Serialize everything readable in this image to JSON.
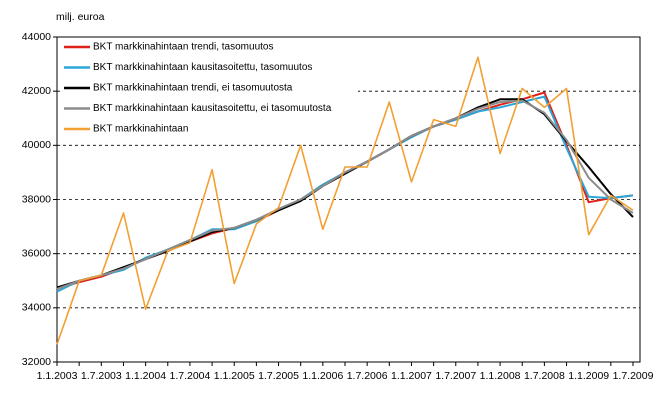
{
  "chart_data": {
    "type": "line",
    "y_unit_label": "milj. euroa",
    "categories": [
      "1.1.2003",
      null,
      "1.7.2003",
      null,
      "1.1.2004",
      null,
      "1.7.2004",
      null,
      "1.1.2005",
      null,
      "1.7.2005",
      null,
      "1.1.2006",
      null,
      "1.7.2006",
      null,
      "1.1.2007",
      null,
      "1.7.2007",
      null,
      "1.1.2008",
      null,
      "1.7.2008",
      null,
      "1.1.2009",
      null,
      "1.7.2009"
    ],
    "ylim": [
      32000,
      44000
    ],
    "yticks": [
      32000,
      34000,
      36000,
      38000,
      40000,
      42000,
      44000
    ],
    "grid": true,
    "legend_position": "upper-left",
    "series": [
      {
        "name": "BKT markkinahintaan trendi, tasomuutos",
        "color": "#e0201b",
        "values": [
          34700,
          34950,
          35150,
          35450,
          35800,
          36100,
          36450,
          36750,
          36950,
          37200,
          37600,
          38000,
          38500,
          39000,
          39400,
          39850,
          40350,
          40700,
          40950,
          41250,
          41500,
          41700,
          41950,
          40000,
          37900,
          38050,
          38150
        ]
      },
      {
        "name": "BKT markkinahintaan kausitasoitettu, tasomuutos",
        "color": "#2aa6d9",
        "values": [
          34600,
          35000,
          35200,
          35400,
          35850,
          36150,
          36500,
          36900,
          36900,
          37200,
          37650,
          38000,
          38550,
          39000,
          39400,
          39850,
          40300,
          40700,
          40950,
          41250,
          41400,
          41600,
          41800,
          39900,
          38100,
          38050,
          38150
        ]
      },
      {
        "name": "BKT markkinahintaan trendi, ei tasomuutosta",
        "color": "#000000",
        "values": [
          34750,
          35000,
          35200,
          35500,
          35800,
          36100,
          36450,
          36800,
          36950,
          37250,
          37600,
          37950,
          38500,
          38950,
          39400,
          39850,
          40350,
          40700,
          41000,
          41400,
          41700,
          41700,
          41150,
          40150,
          39200,
          38200,
          37350
        ]
      },
      {
        "name": "BKT markkinahintaan kausitasoitettu, ei tasomuutosta",
        "color": "#8c8c8c",
        "values": [
          34700,
          35000,
          35200,
          35450,
          35800,
          36150,
          36500,
          36850,
          36950,
          37250,
          37650,
          38000,
          38500,
          39000,
          39400,
          39850,
          40350,
          40700,
          41000,
          41350,
          41600,
          41650,
          41200,
          40200,
          38800,
          38000,
          37500
        ]
      },
      {
        "name": "BKT markkinahintaan",
        "color": "#f2a033",
        "values": [
          32650,
          35000,
          35200,
          37500,
          33950,
          36100,
          36400,
          39100,
          34900,
          37100,
          37700,
          40000,
          36900,
          39200,
          39200,
          41600,
          38650,
          40950,
          40700,
          43250,
          39700,
          42100,
          41400,
          42100,
          36700,
          38150,
          37600
        ]
      }
    ]
  }
}
